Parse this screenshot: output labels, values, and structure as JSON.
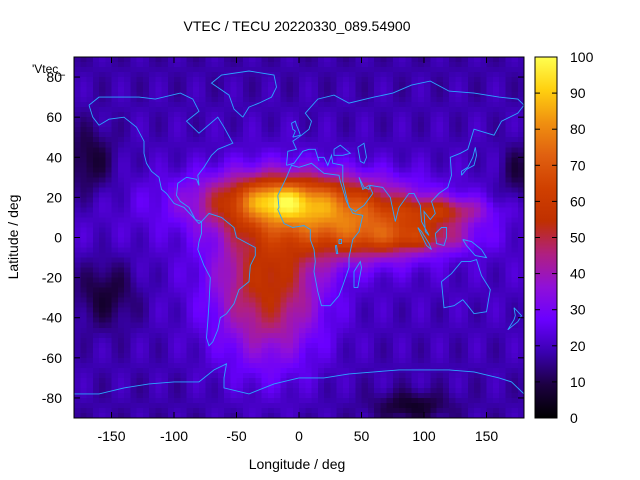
{
  "chart_data": {
    "type": "heatmap",
    "title": "VTEC / TECU 20220330_089.54900",
    "xlabel": "Longitude / deg",
    "ylabel": "Latitude / deg",
    "series_label": "'Vtec_",
    "xlim": [
      -180,
      180
    ],
    "ylim": [
      -90,
      90
    ],
    "x_ticks": [
      -150,
      -100,
      -50,
      0,
      50,
      100,
      150
    ],
    "y_ticks": [
      -80,
      -60,
      -40,
      -20,
      0,
      20,
      40,
      60,
      80
    ],
    "x_tick_labels": [
      "-150",
      "-100",
      "-50",
      "0",
      "50",
      "100",
      "150"
    ],
    "y_tick_labels": [
      "-80",
      "-60",
      "-40",
      "-20",
      "0",
      "20",
      "40",
      "60",
      "80"
    ],
    "colorbar": {
      "range": [
        0,
        100
      ],
      "ticks": [
        0,
        10,
        20,
        30,
        40,
        50,
        60,
        70,
        80,
        90,
        100
      ],
      "tick_labels": [
        "0",
        "10",
        "20",
        "30",
        "40",
        "50",
        "60",
        "70",
        "80",
        "90",
        "100"
      ],
      "palette": [
        "#000000",
        "#1c0040",
        "#3a00b0",
        "#6a00ff",
        "#9010d8",
        "#b02080",
        "#c03000",
        "#d04000",
        "#e06010",
        "#f09010",
        "#ffd010",
        "#ffff50"
      ]
    },
    "field_sources": [
      {
        "lon": 0,
        "lat": 18,
        "sigma_lon": 55,
        "sigma_lat": 10,
        "amp": 52
      },
      {
        "lon": -18,
        "lat": 19,
        "sigma_lon": 18,
        "sigma_lat": 6,
        "amp": 14
      },
      {
        "lon": -25,
        "lat": -22,
        "sigma_lon": 30,
        "sigma_lat": 28,
        "amp": 36
      },
      {
        "lon": 50,
        "lat": 2,
        "sigma_lon": 40,
        "sigma_lat": 10,
        "amp": 38
      },
      {
        "lon": 115,
        "lat": 13,
        "sigma_lon": 25,
        "sigma_lat": 5,
        "amp": 26
      },
      {
        "lon": 100,
        "lat": 0,
        "sigma_lon": 30,
        "sigma_lat": 5,
        "amp": 18
      },
      {
        "lon": -168,
        "lat": 38,
        "sigma_lon": 14,
        "sigma_lat": 12,
        "amp": -12
      },
      {
        "lon": -155,
        "lat": -28,
        "sigma_lon": 18,
        "sigma_lat": 12,
        "amp": -12
      },
      {
        "lon": 175,
        "lat": 32,
        "sigma_lon": 10,
        "sigma_lat": 10,
        "amp": -10
      },
      {
        "lon": 90,
        "lat": -84,
        "sigma_lon": 20,
        "sigma_lat": 5,
        "amp": -12
      }
    ],
    "field_base": 21
  },
  "coastlines": [
    {
      "name": "north-america",
      "points": [
        [
          -168,
          66
        ],
        [
          -160,
          70
        ],
        [
          -140,
          70
        ],
        [
          -128,
          70
        ],
        [
          -115,
          69
        ],
        [
          -95,
          72
        ],
        [
          -85,
          69
        ],
        [
          -80,
          63
        ],
        [
          -90,
          58
        ],
        [
          -80,
          52
        ],
        [
          -65,
          60
        ],
        [
          -60,
          55
        ],
        [
          -53,
          47
        ],
        [
          -65,
          44
        ],
        [
          -70,
          41
        ],
        [
          -76,
          35
        ],
        [
          -81,
          31
        ],
        [
          -80,
          26
        ],
        [
          -82,
          29
        ],
        [
          -90,
          30
        ],
        [
          -97,
          27
        ],
        [
          -98,
          21
        ],
        [
          -95,
          18
        ],
        [
          -88,
          15
        ],
        [
          -83,
          9
        ],
        [
          -78,
          8
        ],
        [
          -80,
          7
        ],
        [
          -86,
          11
        ],
        [
          -92,
          15
        ],
        [
          -100,
          17
        ],
        [
          -106,
          22
        ],
        [
          -110,
          24
        ],
        [
          -112,
          30
        ],
        [
          -118,
          33
        ],
        [
          -122,
          37
        ],
        [
          -124,
          42
        ],
        [
          -124,
          48
        ],
        [
          -130,
          55
        ],
        [
          -140,
          60
        ],
        [
          -152,
          59
        ],
        [
          -160,
          56
        ],
        [
          -165,
          60
        ],
        [
          -168,
          66
        ]
      ]
    },
    {
      "name": "greenland",
      "points": [
        [
          -45,
          60
        ],
        [
          -52,
          64
        ],
        [
          -56,
          71
        ],
        [
          -70,
          77
        ],
        [
          -62,
          81
        ],
        [
          -40,
          83
        ],
        [
          -20,
          81
        ],
        [
          -18,
          75
        ],
        [
          -22,
          70
        ],
        [
          -32,
          67
        ],
        [
          -40,
          65
        ],
        [
          -45,
          60
        ]
      ]
    },
    {
      "name": "south-america",
      "points": [
        [
          -78,
          8
        ],
        [
          -72,
          12
        ],
        [
          -62,
          10
        ],
        [
          -52,
          5
        ],
        [
          -50,
          0
        ],
        [
          -44,
          -2
        ],
        [
          -35,
          -5
        ],
        [
          -35,
          -9
        ],
        [
          -39,
          -14
        ],
        [
          -40,
          -22
        ],
        [
          -48,
          -26
        ],
        [
          -52,
          -33
        ],
        [
          -58,
          -38
        ],
        [
          -63,
          -40
        ],
        [
          -65,
          -46
        ],
        [
          -69,
          -52
        ],
        [
          -72,
          -54
        ],
        [
          -74,
          -50
        ],
        [
          -73,
          -42
        ],
        [
          -72,
          -33
        ],
        [
          -71,
          -20
        ],
        [
          -76,
          -14
        ],
        [
          -81,
          -6
        ],
        [
          -80,
          -2
        ],
        [
          -78,
          2
        ],
        [
          -78,
          8
        ]
      ]
    },
    {
      "name": "africa",
      "points": [
        [
          -17,
          21
        ],
        [
          -16,
          15
        ],
        [
          -17,
          14
        ],
        [
          -12,
          7
        ],
        [
          -5,
          5
        ],
        [
          4,
          6
        ],
        [
          9,
          4
        ],
        [
          9,
          -1
        ],
        [
          12,
          -6
        ],
        [
          13,
          -12
        ],
        [
          12,
          -17
        ],
        [
          15,
          -27
        ],
        [
          18,
          -34
        ],
        [
          25,
          -34
        ],
        [
          32,
          -29
        ],
        [
          35,
          -24
        ],
        [
          40,
          -15
        ],
        [
          40,
          -10
        ],
        [
          43,
          -1
        ],
        [
          48,
          3
        ],
        [
          51,
          11
        ],
        [
          43,
          12
        ],
        [
          38,
          18
        ],
        [
          33,
          28
        ],
        [
          32,
          31
        ],
        [
          20,
          32
        ],
        [
          10,
          37
        ],
        [
          0,
          35
        ],
        [
          -6,
          36
        ],
        [
          -10,
          30
        ],
        [
          -17,
          21
        ]
      ]
    },
    {
      "name": "eurasia",
      "points": [
        [
          -10,
          36
        ],
        [
          -9,
          43
        ],
        [
          -2,
          44
        ],
        [
          -5,
          48
        ],
        [
          2,
          51
        ],
        [
          8,
          54
        ],
        [
          10,
          58
        ],
        [
          5,
          62
        ],
        [
          15,
          69
        ],
        [
          28,
          71
        ],
        [
          40,
          67
        ],
        [
          60,
          70
        ],
        [
          75,
          72
        ],
        [
          90,
          76
        ],
        [
          105,
          78
        ],
        [
          120,
          73
        ],
        [
          140,
          72
        ],
        [
          160,
          70
        ],
        [
          175,
          69
        ],
        [
          180,
          66
        ],
        [
          175,
          62
        ],
        [
          162,
          58
        ],
        [
          156,
          51
        ],
        [
          140,
          54
        ],
        [
          135,
          44
        ],
        [
          129,
          42
        ],
        [
          121,
          40
        ],
        [
          122,
          31
        ],
        [
          119,
          25
        ],
        [
          112,
          22
        ],
        [
          106,
          18
        ],
        [
          109,
          12
        ],
        [
          105,
          9
        ],
        [
          100,
          13
        ],
        [
          101,
          3
        ],
        [
          104,
          1
        ],
        [
          98,
          8
        ],
        [
          97,
          16
        ],
        [
          92,
          22
        ],
        [
          88,
          22
        ],
        [
          80,
          15
        ],
        [
          77,
          8
        ],
        [
          73,
          20
        ],
        [
          67,
          25
        ],
        [
          57,
          26
        ],
        [
          56,
          24
        ],
        [
          52,
          25
        ],
        [
          48,
          30
        ],
        [
          51,
          24
        ],
        [
          56,
          26
        ],
        [
          59,
          22
        ],
        [
          52,
          16
        ],
        [
          45,
          13
        ],
        [
          40,
          15
        ],
        [
          35,
          28
        ],
        [
          35,
          36
        ],
        [
          27,
          37
        ],
        [
          26,
          41
        ],
        [
          23,
          36
        ],
        [
          20,
          40
        ],
        [
          15,
          40
        ],
        [
          16,
          38
        ],
        [
          13,
          44
        ],
        [
          8,
          44
        ],
        [
          3,
          43
        ],
        [
          -4,
          37
        ],
        [
          -10,
          36
        ]
      ]
    },
    {
      "name": "britain",
      "points": [
        [
          -5,
          50
        ],
        [
          1,
          51
        ],
        [
          0,
          53
        ],
        [
          -2,
          56
        ],
        [
          -3,
          58
        ],
        [
          -6,
          57
        ],
        [
          -5,
          54
        ],
        [
          -3,
          53
        ],
        [
          -5,
          50
        ]
      ]
    },
    {
      "name": "madagascar",
      "points": [
        [
          44,
          -25
        ],
        [
          47,
          -25
        ],
        [
          50,
          -15
        ],
        [
          49,
          -12
        ],
        [
          44,
          -17
        ],
        [
          44,
          -25
        ]
      ]
    },
    {
      "name": "australia",
      "points": [
        [
          114,
          -22
        ],
        [
          122,
          -18
        ],
        [
          130,
          -12
        ],
        [
          137,
          -12
        ],
        [
          142,
          -11
        ],
        [
          146,
          -19
        ],
        [
          153,
          -26
        ],
        [
          150,
          -37
        ],
        [
          140,
          -38
        ],
        [
          135,
          -34
        ],
        [
          131,
          -31
        ],
        [
          124,
          -34
        ],
        [
          116,
          -35
        ],
        [
          114,
          -22
        ]
      ]
    },
    {
      "name": "new-zealand",
      "points": [
        [
          172,
          -35
        ],
        [
          175,
          -37
        ],
        [
          178,
          -39
        ],
        [
          175,
          -42
        ],
        [
          171,
          -44
        ],
        [
          167,
          -46
        ],
        [
          172,
          -41
        ],
        [
          173,
          -39
        ],
        [
          172,
          -35
        ]
      ]
    },
    {
      "name": "japan",
      "points": [
        [
          130,
          31
        ],
        [
          134,
          34
        ],
        [
          140,
          36
        ],
        [
          142,
          41
        ],
        [
          141,
          45
        ],
        [
          139,
          40
        ],
        [
          135,
          35
        ],
        [
          130,
          33
        ],
        [
          130,
          31
        ]
      ]
    },
    {
      "name": "borneo",
      "points": [
        [
          109,
          2
        ],
        [
          114,
          5
        ],
        [
          118,
          5
        ],
        [
          118,
          0
        ],
        [
          116,
          -4
        ],
        [
          110,
          -3
        ],
        [
          109,
          2
        ]
      ]
    },
    {
      "name": "sumatra",
      "points": [
        [
          95,
          5
        ],
        [
          98,
          3
        ],
        [
          104,
          -3
        ],
        [
          106,
          -6
        ],
        [
          102,
          -4
        ],
        [
          95,
          5
        ]
      ]
    },
    {
      "name": "new-guinea",
      "points": [
        [
          131,
          -1
        ],
        [
          138,
          -2
        ],
        [
          146,
          -6
        ],
        [
          150,
          -10
        ],
        [
          141,
          -9
        ],
        [
          134,
          -4
        ],
        [
          131,
          -1
        ]
      ]
    },
    {
      "name": "antarctica",
      "points": [
        [
          -180,
          -78
        ],
        [
          -160,
          -78
        ],
        [
          -140,
          -75
        ],
        [
          -120,
          -73
        ],
        [
          -100,
          -72
        ],
        [
          -80,
          -72
        ],
        [
          -68,
          -66
        ],
        [
          -58,
          -63
        ],
        [
          -60,
          -70
        ],
        [
          -60,
          -75
        ],
        [
          -40,
          -78
        ],
        [
          -20,
          -73
        ],
        [
          0,
          -70
        ],
        [
          20,
          -70
        ],
        [
          40,
          -68
        ],
        [
          60,
          -67
        ],
        [
          80,
          -66
        ],
        [
          100,
          -66
        ],
        [
          120,
          -66
        ],
        [
          140,
          -67
        ],
        [
          160,
          -70
        ],
        [
          170,
          -72
        ],
        [
          180,
          -78
        ]
      ]
    },
    {
      "name": "lake-victoria",
      "points": [
        [
          32,
          -1
        ],
        [
          34,
          -1
        ],
        [
          34,
          -3
        ],
        [
          32,
          -3
        ],
        [
          32,
          -1
        ]
      ]
    },
    {
      "name": "lake-tanganyika",
      "points": [
        [
          29,
          -4
        ],
        [
          30,
          -4
        ],
        [
          31,
          -8
        ],
        [
          30,
          -8
        ],
        [
          29,
          -4
        ]
      ]
    },
    {
      "name": "caspian",
      "points": [
        [
          47,
          45
        ],
        [
          52,
          47
        ],
        [
          54,
          40
        ],
        [
          52,
          37
        ],
        [
          49,
          38
        ],
        [
          47,
          45
        ]
      ]
    },
    {
      "name": "black-sea",
      "points": [
        [
          28,
          44
        ],
        [
          33,
          46
        ],
        [
          41,
          42
        ],
        [
          35,
          41
        ],
        [
          28,
          41
        ],
        [
          28,
          44
        ]
      ]
    }
  ]
}
